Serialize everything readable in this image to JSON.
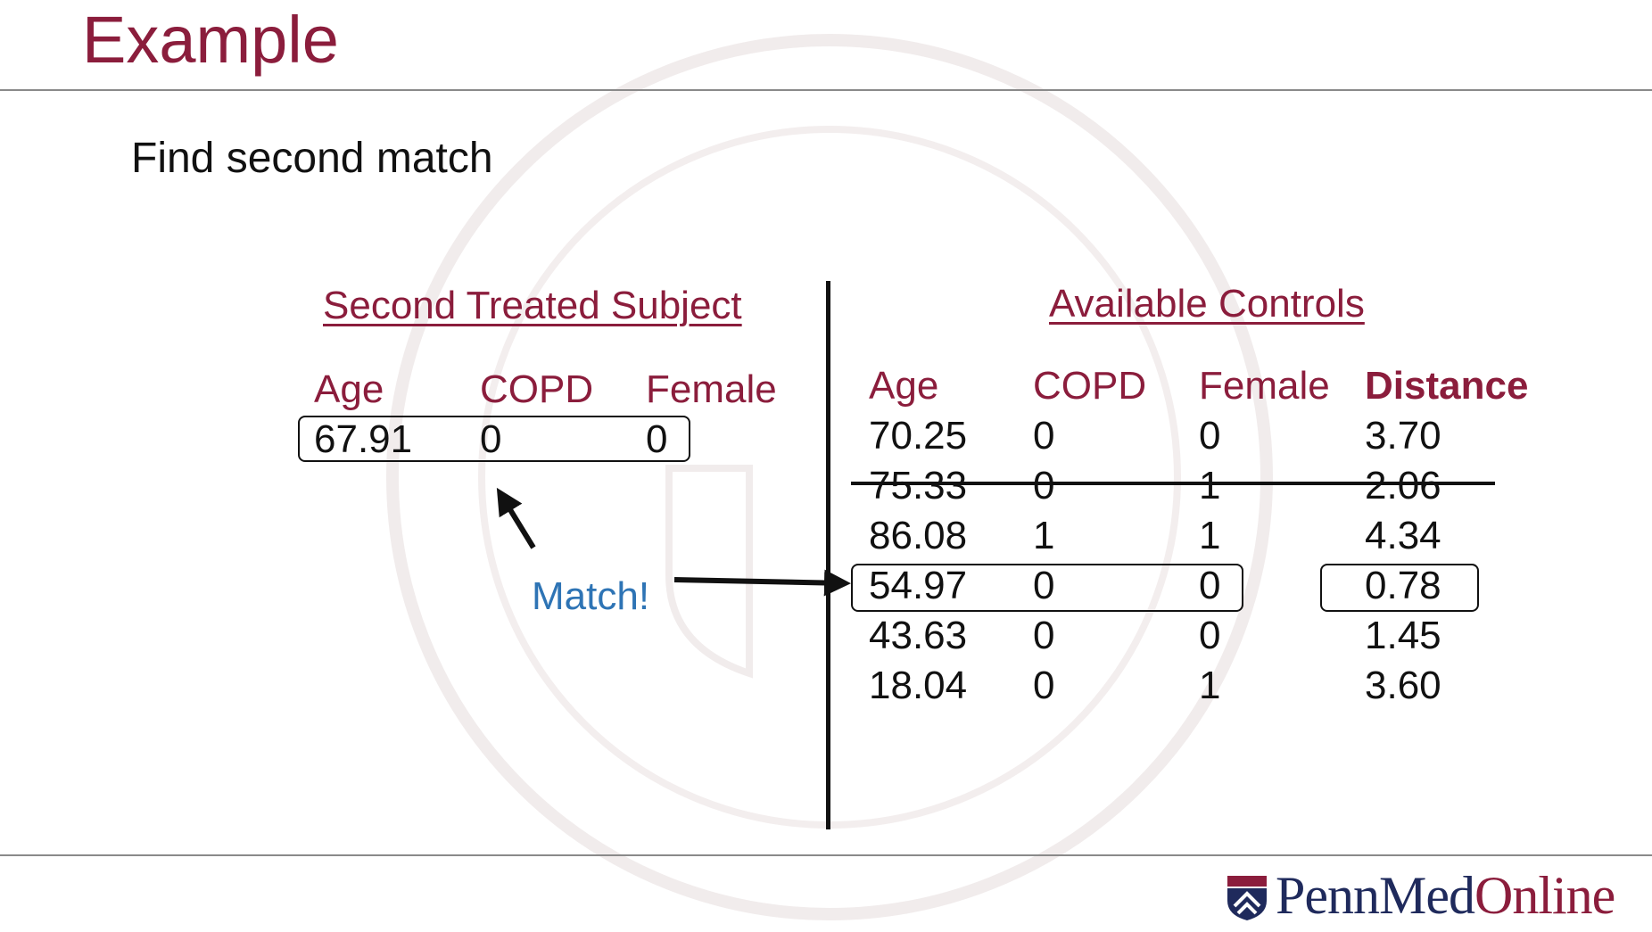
{
  "slide": {
    "title": "Example",
    "subtitle": "Find second match",
    "match_label": "Match!"
  },
  "treated": {
    "heading": "Second Treated Subject",
    "columns": [
      "Age",
      "COPD",
      "Female"
    ],
    "row": [
      "67.91",
      "0",
      "0"
    ]
  },
  "controls": {
    "heading": "Available Controls",
    "columns": [
      "Age",
      "COPD",
      "Female",
      "Distance"
    ],
    "rows": [
      [
        "70.25",
        "0",
        "0",
        "3.70"
      ],
      [
        "75.33",
        "0",
        "1",
        "2.06"
      ],
      [
        "86.08",
        "1",
        "1",
        "4.34"
      ],
      [
        "54.97",
        "0",
        "0",
        "0.78"
      ],
      [
        "43.63",
        "0",
        "0",
        "1.45"
      ],
      [
        "18.04",
        "0",
        "1",
        "3.60"
      ]
    ]
  },
  "logo": {
    "part1": "Penn",
    "part2": "Med",
    "part3": "Online",
    "brand_color": "#8b1d3c",
    "navy_color": "#1f2a5c"
  }
}
